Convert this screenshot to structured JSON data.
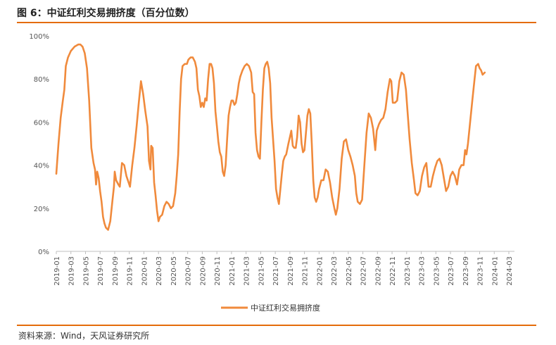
{
  "figure": {
    "title": "图 6：中证红利交易拥挤度（百分位数）",
    "source": "资料来源：Wind，天风证券研究所"
  },
  "colors": {
    "accent": "#E46C0A",
    "line": "#F08A3C",
    "axis": "#BFBFBF"
  },
  "chart_data": {
    "type": "line",
    "title": "",
    "xlabel": "",
    "ylabel": "",
    "ylim": [
      0,
      100
    ],
    "yticks": [
      "0%",
      "20%",
      "40%",
      "60%",
      "80%",
      "100%"
    ],
    "xticks": [
      "2019-01",
      "2019-03",
      "2019-05",
      "2019-07",
      "2019-09",
      "2019-11",
      "2020-01",
      "2020-03",
      "2020-05",
      "2020-07",
      "2020-09",
      "2020-11",
      "2021-01",
      "2021-03",
      "2021-05",
      "2021-07",
      "2021-09",
      "2021-11",
      "2022-01",
      "2022-03",
      "2022-05",
      "2022-07",
      "2022-09",
      "2022-11",
      "2023-01",
      "2023-03",
      "2023-05",
      "2023-07",
      "2023-09",
      "2023-11",
      "2024-01",
      "2024-03"
    ],
    "legend_position": "bottom",
    "grid": false,
    "series": [
      {
        "name": "中证红利交易拥挤度",
        "x_unit": "months since 2019-01",
        "points": [
          [
            0,
            36
          ],
          [
            0.3,
            50
          ],
          [
            0.6,
            62
          ],
          [
            0.9,
            70
          ],
          [
            1.1,
            75
          ],
          [
            1.3,
            86
          ],
          [
            1.6,
            90
          ],
          [
            2.0,
            93
          ],
          [
            2.5,
            95
          ],
          [
            3.0,
            96
          ],
          [
            3.3,
            96
          ],
          [
            3.6,
            95
          ],
          [
            3.9,
            92
          ],
          [
            4.2,
            85
          ],
          [
            4.5,
            70
          ],
          [
            4.8,
            48
          ],
          [
            5.1,
            41
          ],
          [
            5.3,
            38
          ],
          [
            5.45,
            31
          ],
          [
            5.6,
            37
          ],
          [
            5.8,
            34
          ],
          [
            6.0,
            28
          ],
          [
            6.2,
            23
          ],
          [
            6.4,
            16
          ],
          [
            6.6,
            13
          ],
          [
            6.8,
            11
          ],
          [
            7.1,
            10
          ],
          [
            7.4,
            14
          ],
          [
            7.7,
            24
          ],
          [
            7.9,
            30
          ],
          [
            8.0,
            37
          ],
          [
            8.2,
            33
          ],
          [
            8.5,
            31
          ],
          [
            8.7,
            30
          ],
          [
            9.0,
            41
          ],
          [
            9.3,
            40
          ],
          [
            9.6,
            35
          ],
          [
            9.9,
            32
          ],
          [
            10.1,
            30
          ],
          [
            10.4,
            40
          ],
          [
            10.7,
            48
          ],
          [
            11.0,
            58
          ],
          [
            11.3,
            69
          ],
          [
            11.6,
            79
          ],
          [
            11.9,
            73
          ],
          [
            12.2,
            65
          ],
          [
            12.5,
            58
          ],
          [
            12.7,
            42
          ],
          [
            12.9,
            38
          ],
          [
            13.0,
            49
          ],
          [
            13.2,
            48
          ],
          [
            13.4,
            32
          ],
          [
            13.6,
            26
          ],
          [
            13.8,
            19
          ],
          [
            14.0,
            14
          ],
          [
            14.2,
            16
          ],
          [
            14.5,
            17
          ],
          [
            14.8,
            21
          ],
          [
            15.1,
            23
          ],
          [
            15.4,
            22
          ],
          [
            15.7,
            20
          ],
          [
            16.0,
            21
          ],
          [
            16.3,
            27
          ],
          [
            16.5,
            35
          ],
          [
            16.7,
            45
          ],
          [
            16.9,
            65
          ],
          [
            17.1,
            80
          ],
          [
            17.3,
            86
          ],
          [
            17.6,
            87
          ],
          [
            17.9,
            87
          ],
          [
            18.1,
            89
          ],
          [
            18.4,
            90
          ],
          [
            18.7,
            90
          ],
          [
            19.0,
            88
          ],
          [
            19.2,
            85
          ],
          [
            19.4,
            75
          ],
          [
            19.6,
            72
          ],
          [
            19.8,
            67
          ],
          [
            20.0,
            69
          ],
          [
            20.2,
            67
          ],
          [
            20.4,
            71
          ],
          [
            20.6,
            70
          ],
          [
            20.8,
            80
          ],
          [
            21.0,
            87
          ],
          [
            21.2,
            87
          ],
          [
            21.4,
            85
          ],
          [
            21.6,
            78
          ],
          [
            21.8,
            65
          ],
          [
            22.0,
            58
          ],
          [
            22.2,
            51
          ],
          [
            22.4,
            46
          ],
          [
            22.6,
            44
          ],
          [
            22.8,
            37
          ],
          [
            23.0,
            35
          ],
          [
            23.2,
            40
          ],
          [
            23.4,
            52
          ],
          [
            23.6,
            63
          ],
          [
            23.8,
            67
          ],
          [
            24.0,
            70
          ],
          [
            24.2,
            70
          ],
          [
            24.4,
            68
          ],
          [
            24.6,
            69
          ],
          [
            24.8,
            73
          ],
          [
            25.0,
            78
          ],
          [
            25.2,
            81
          ],
          [
            25.5,
            84
          ],
          [
            25.8,
            86
          ],
          [
            26.1,
            87
          ],
          [
            26.4,
            86
          ],
          [
            26.7,
            83
          ],
          [
            26.9,
            74
          ],
          [
            27.1,
            73
          ],
          [
            27.3,
            55
          ],
          [
            27.5,
            47
          ],
          [
            27.7,
            44
          ],
          [
            27.9,
            43
          ],
          [
            28.1,
            60
          ],
          [
            28.3,
            75
          ],
          [
            28.5,
            85
          ],
          [
            28.7,
            87
          ],
          [
            28.9,
            88
          ],
          [
            29.1,
            85
          ],
          [
            29.3,
            78
          ],
          [
            29.5,
            62
          ],
          [
            29.7,
            52
          ],
          [
            29.9,
            42
          ],
          [
            30.1,
            29
          ],
          [
            30.3,
            25
          ],
          [
            30.5,
            22
          ],
          [
            30.7,
            29
          ],
          [
            30.9,
            36
          ],
          [
            31.1,
            42
          ],
          [
            31.3,
            44
          ],
          [
            31.5,
            45
          ],
          [
            31.8,
            50
          ],
          [
            32.0,
            53
          ],
          [
            32.2,
            56
          ],
          [
            32.4,
            49
          ],
          [
            32.6,
            48
          ],
          [
            32.8,
            48
          ],
          [
            33.0,
            53
          ],
          [
            33.2,
            63
          ],
          [
            33.4,
            60
          ],
          [
            33.6,
            50
          ],
          [
            33.8,
            46
          ],
          [
            34.0,
            47
          ],
          [
            34.2,
            55
          ],
          [
            34.4,
            63
          ],
          [
            34.6,
            66
          ],
          [
            34.8,
            64
          ],
          [
            35.0,
            50
          ],
          [
            35.2,
            33
          ],
          [
            35.4,
            25
          ],
          [
            35.6,
            23
          ],
          [
            35.8,
            25
          ],
          [
            36.0,
            29
          ],
          [
            36.3,
            33
          ],
          [
            36.6,
            33
          ],
          [
            36.9,
            38
          ],
          [
            37.2,
            37
          ],
          [
            37.5,
            32
          ],
          [
            37.8,
            25
          ],
          [
            38.1,
            20
          ],
          [
            38.3,
            17
          ],
          [
            38.5,
            20
          ],
          [
            38.8,
            29
          ],
          [
            39.1,
            43
          ],
          [
            39.4,
            51
          ],
          [
            39.7,
            52
          ],
          [
            40.0,
            47
          ],
          [
            40.3,
            44
          ],
          [
            40.6,
            40
          ],
          [
            40.9,
            35
          ],
          [
            41.1,
            27
          ],
          [
            41.3,
            23
          ],
          [
            41.6,
            22
          ],
          [
            41.9,
            24
          ],
          [
            42.2,
            40
          ],
          [
            42.5,
            55
          ],
          [
            42.8,
            64
          ],
          [
            43.1,
            62
          ],
          [
            43.4,
            57
          ],
          [
            43.7,
            47
          ],
          [
            43.9,
            56
          ],
          [
            44.2,
            59
          ],
          [
            44.5,
            61
          ],
          [
            44.8,
            62
          ],
          [
            45.1,
            66
          ],
          [
            45.4,
            74
          ],
          [
            45.7,
            80
          ],
          [
            45.9,
            79
          ],
          [
            46.1,
            69
          ],
          [
            46.4,
            69
          ],
          [
            46.7,
            70
          ],
          [
            47.0,
            79
          ],
          [
            47.3,
            83
          ],
          [
            47.6,
            82
          ],
          [
            47.9,
            75
          ],
          [
            48.1,
            66
          ],
          [
            48.4,
            52
          ],
          [
            48.7,
            41
          ],
          [
            49.0,
            33
          ],
          [
            49.2,
            27
          ],
          [
            49.5,
            26
          ],
          [
            49.8,
            28
          ],
          [
            50.1,
            35
          ],
          [
            50.4,
            39
          ],
          [
            50.7,
            41
          ],
          [
            51.0,
            30
          ],
          [
            51.3,
            30
          ],
          [
            51.6,
            35
          ],
          [
            51.9,
            39
          ],
          [
            52.2,
            42
          ],
          [
            52.5,
            43
          ],
          [
            52.8,
            40
          ],
          [
            53.1,
            34
          ],
          [
            53.4,
            28
          ],
          [
            53.7,
            30
          ],
          [
            54.0,
            35
          ],
          [
            54.3,
            37
          ],
          [
            54.6,
            35
          ],
          [
            54.9,
            31
          ],
          [
            55.2,
            38
          ],
          [
            55.5,
            40
          ],
          [
            55.8,
            40
          ],
          [
            56.0,
            47
          ],
          [
            56.2,
            45
          ],
          [
            56.4,
            50
          ],
          [
            56.7,
            60
          ],
          [
            57.0,
            70
          ],
          [
            57.3,
            80
          ],
          [
            57.5,
            86
          ],
          [
            57.8,
            87
          ],
          [
            58.0,
            85
          ],
          [
            58.2,
            84
          ],
          [
            58.4,
            82
          ],
          [
            58.7,
            83
          ]
        ]
      }
    ]
  }
}
